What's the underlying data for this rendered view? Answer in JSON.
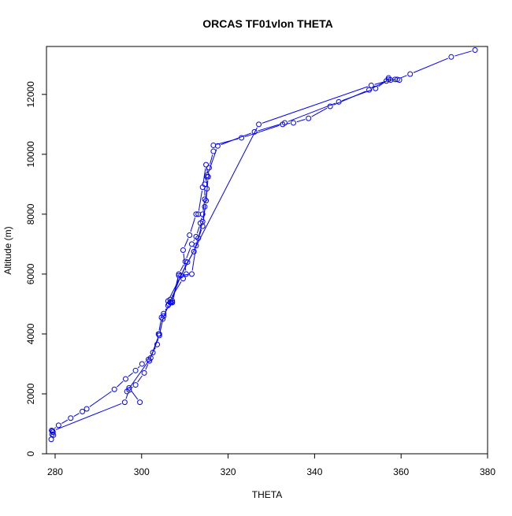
{
  "chart_data": {
    "type": "line",
    "title": "ORCAS TF01vlon THETA",
    "xlabel": "THETA",
    "ylabel": "Altitude (m)",
    "xlim": [
      278,
      380
    ],
    "ylim": [
      0,
      13600
    ],
    "x_ticks": [
      280,
      300,
      320,
      340,
      360,
      380
    ],
    "y_ticks": [
      0,
      2000,
      4000,
      6000,
      8000,
      10000,
      12000
    ],
    "color": "#0000ff",
    "grid": false,
    "legend": "none",
    "series": [
      {
        "points": [
          [
            279.1,
            480
          ],
          [
            279.3,
            650
          ],
          [
            279.5,
            720
          ],
          [
            279.2,
            780
          ],
          [
            280.8,
            950
          ],
          [
            283.6,
            1190
          ],
          [
            286.3,
            1410
          ],
          [
            287.3,
            1500
          ],
          [
            293.7,
            2150
          ],
          [
            296.3,
            2500
          ],
          [
            298.6,
            2780
          ],
          [
            300.1,
            3000
          ],
          [
            301.6,
            3150
          ],
          [
            302.6,
            3380
          ],
          [
            303.6,
            3650
          ],
          [
            303.9,
            4000
          ],
          [
            304.6,
            4550
          ],
          [
            305.1,
            4680
          ],
          [
            306.1,
            4950
          ],
          [
            306.8,
            5050
          ],
          [
            307.1,
            5100
          ],
          [
            308.6,
            6000
          ],
          [
            310.1,
            6420
          ],
          [
            311.6,
            7000
          ],
          [
            312.6,
            7250
          ],
          [
            313.6,
            7700
          ],
          [
            314.1,
            8000
          ],
          [
            314.6,
            8500
          ],
          [
            314.6,
            9000
          ],
          [
            315.1,
            9300
          ],
          [
            315.6,
            9550
          ],
          [
            316.6,
            10100
          ],
          [
            316.6,
            10300
          ],
          [
            323.1,
            10550
          ],
          [
            332.6,
            11000
          ],
          [
            335.1,
            11050
          ],
          [
            338.6,
            11200
          ],
          [
            343.6,
            11600
          ],
          [
            352.6,
            12150
          ],
          [
            356.6,
            12450
          ],
          [
            359.1,
            12500
          ],
          [
            362.1,
            12680
          ],
          [
            371.6,
            13250
          ],
          [
            377.1,
            13480
          ]
        ]
      },
      {
        "points": [
          [
            279.6,
            620
          ],
          [
            279.4,
            760
          ],
          [
            296.1,
            1720
          ],
          [
            297.1,
            2130
          ],
          [
            298.6,
            2300
          ],
          [
            300.6,
            2700
          ],
          [
            301.8,
            3100
          ],
          [
            304.1,
            4000
          ],
          [
            305.1,
            4600
          ],
          [
            306.6,
            5050
          ],
          [
            309.1,
            5950
          ],
          [
            310.6,
            6400
          ],
          [
            312.1,
            6750
          ],
          [
            313.1,
            7200
          ],
          [
            314.1,
            7750
          ],
          [
            314.6,
            8250
          ],
          [
            315.1,
            8850
          ],
          [
            315.1,
            9250
          ],
          [
            317.6,
            10280
          ],
          [
            326.1,
            10750
          ],
          [
            333.1,
            11050
          ],
          [
            345.6,
            11750
          ],
          [
            354.1,
            12200
          ],
          [
            357.1,
            12500
          ],
          [
            359.6,
            12480
          ]
        ]
      },
      {
        "points": [
          [
            299.6,
            1720
          ],
          [
            297.1,
            2200
          ],
          [
            296.6,
            2080
          ],
          [
            302.1,
            3200
          ],
          [
            304.1,
            3950
          ],
          [
            304.9,
            4500
          ],
          [
            306.3,
            5000
          ],
          [
            306.6,
            5150
          ],
          [
            309.6,
            5850
          ],
          [
            310.3,
            6000
          ],
          [
            309.6,
            6800
          ],
          [
            311.1,
            7300
          ],
          [
            312.6,
            8000
          ],
          [
            313.1,
            8000
          ],
          [
            314.1,
            8900
          ],
          [
            314.9,
            9650
          ],
          [
            315.4,
            9250
          ],
          [
            314.9,
            8450
          ],
          [
            314.1,
            7600
          ],
          [
            312.6,
            6950
          ],
          [
            311.6,
            6000
          ],
          [
            308.6,
            5950
          ],
          [
            307.1,
            5050
          ],
          [
            306.1,
            5100
          ],
          [
            327.1,
            11000
          ],
          [
            353.1,
            12300
          ],
          [
            357.6,
            12480
          ],
          [
            357.1,
            12550
          ],
          [
            358.6,
            12500
          ]
        ]
      }
    ]
  }
}
